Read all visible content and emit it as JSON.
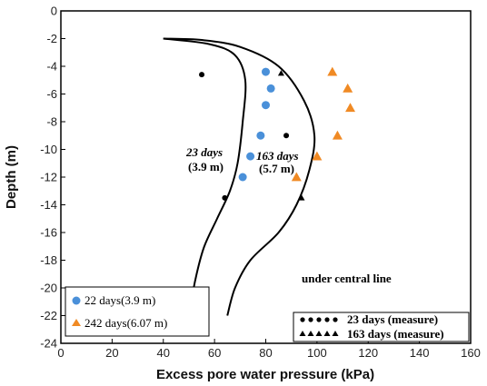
{
  "chart_data": {
    "type": "scatter",
    "xlabel": "Excess pore water pressure (kPa)",
    "ylabel": "Depth (m)",
    "xlim": [
      0,
      160
    ],
    "ylim": [
      -24,
      0
    ],
    "x_ticks": [
      "0",
      "20",
      "40",
      "60",
      "80",
      "100",
      "120",
      "140",
      "160"
    ],
    "y_ticks": [
      "0",
      "-2",
      "-4",
      "-6",
      "-8",
      "-10",
      "-12",
      "-14",
      "-16",
      "-18",
      "-20",
      "-22",
      "-24"
    ],
    "annotation": "under central line",
    "curve_labels": [
      {
        "name": "23 days",
        "sub": "(3.9 m)"
      },
      {
        "name": "163 days",
        "sub": "(5.7 m)"
      }
    ],
    "series": [
      {
        "name": "22 days(3.9 m)",
        "kind": "scatter",
        "marker": "circle",
        "color": "#4a90d9",
        "points": [
          [
            80,
            -4.4
          ],
          [
            82,
            -5.6
          ],
          [
            80,
            -6.8
          ],
          [
            78,
            -9
          ],
          [
            74,
            -10.5
          ],
          [
            71,
            -12
          ]
        ]
      },
      {
        "name": "242 days(6.07 m)",
        "kind": "scatter",
        "marker": "triangle",
        "color": "#f08a24",
        "points": [
          [
            106,
            -4.4
          ],
          [
            112,
            -5.6
          ],
          [
            113,
            -7
          ],
          [
            108,
            -9
          ],
          [
            100,
            -10.5
          ],
          [
            92,
            -12
          ]
        ]
      },
      {
        "name": "23 days (measure)",
        "kind": "scatter",
        "marker": "circle",
        "color": "#000000",
        "points": [
          [
            55,
            -4.6
          ],
          [
            88,
            -9
          ],
          [
            64,
            -13.5
          ]
        ]
      },
      {
        "name": "163 days (measure)",
        "kind": "scatter",
        "marker": "triangle",
        "color": "#000000",
        "points": [
          [
            86,
            -4.5
          ],
          [
            94,
            -13.5
          ]
        ]
      },
      {
        "name": "23 days",
        "kind": "line",
        "color": "#000000",
        "points": [
          [
            40,
            -2
          ],
          [
            58,
            -2.4
          ],
          [
            68,
            -3.2
          ],
          [
            72,
            -5
          ],
          [
            71,
            -8
          ],
          [
            69,
            -11
          ],
          [
            66,
            -13
          ],
          [
            61,
            -15
          ],
          [
            56,
            -17
          ],
          [
            53,
            -19
          ],
          [
            51,
            -21
          ],
          [
            51,
            -22
          ]
        ]
      },
      {
        "name": "163 days",
        "kind": "line",
        "color": "#000000",
        "points": [
          [
            40,
            -2
          ],
          [
            55,
            -2.1
          ],
          [
            70,
            -2.6
          ],
          [
            85,
            -4
          ],
          [
            95,
            -6.5
          ],
          [
            99,
            -9
          ],
          [
            97,
            -11.5
          ],
          [
            92,
            -14
          ],
          [
            85,
            -16
          ],
          [
            74,
            -18
          ],
          [
            68,
            -20
          ],
          [
            65,
            -22
          ]
        ]
      }
    ],
    "legends": [
      {
        "position": "bottom-left",
        "entries": [
          "22 days(3.9 m)",
          "242 days(6.07 m)"
        ]
      },
      {
        "position": "bottom-right",
        "entries": [
          "23 days (measure)",
          "163 days (measure)"
        ]
      }
    ]
  }
}
